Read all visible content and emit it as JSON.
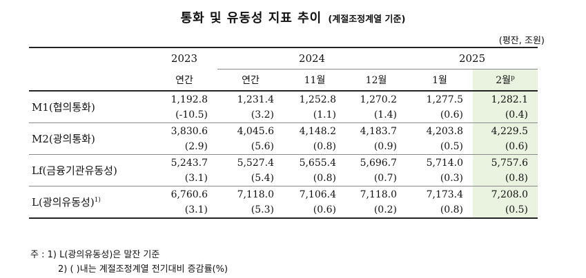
{
  "title": {
    "main": "통화 및 유동성 지표 추이",
    "sub": "(계절조정계열 기준)"
  },
  "unit": "(평잔, 조원)",
  "header": {
    "years": [
      "2023",
      "2024",
      "2025"
    ],
    "periods": [
      "연간",
      "연간",
      "11월",
      "12월",
      "1월",
      "2월"
    ],
    "last_period_sup": "p"
  },
  "rows": [
    {
      "label": "M1(협의통화)",
      "label_sup": "",
      "values": [
        "1,192.8",
        "1,231.4",
        "1,252.8",
        "1,270.2",
        "1,277.5",
        "1,282.1"
      ],
      "changes": [
        "(-10.5)",
        "(3.2)",
        "(1.1)",
        "(1.4)",
        "(0.6)",
        "(0.4)"
      ]
    },
    {
      "label": "M2(광의통화)",
      "label_sup": "",
      "values": [
        "3,830.6",
        "4,045.6",
        "4,148.2",
        "4,183.7",
        "4,203.8",
        "4,229.5"
      ],
      "changes": [
        "(2.9)",
        "(5.6)",
        "(0.8)",
        "(0.9)",
        "(0.5)",
        "(0.6)"
      ]
    },
    {
      "label": "Lf(금융기관유동성)",
      "label_sup": "",
      "values": [
        "5,243.7",
        "5,527.4",
        "5,655.4",
        "5,696.7",
        "5,714.0",
        "5,757.6"
      ],
      "changes": [
        "(3.1)",
        "(5.4)",
        "(0.8)",
        "(0.7)",
        "(0.3)",
        "(0.8)"
      ]
    },
    {
      "label": "L(광의유동성)",
      "label_sup": "1)",
      "values": [
        "6,760.6",
        "7,118.0",
        "7,106.4",
        "7,118.0",
        "7,173.4",
        "7,208.0"
      ],
      "changes": [
        "(3.1)",
        "(5.3)",
        "(0.6)",
        "(0.2)",
        "(0.8)",
        "(0.5)"
      ]
    }
  ],
  "notes": {
    "line1": "주 : 1) L(광의유동성)은 말잔 기준",
    "line2": "2) (   )내는 계절조정계열 전기대비 증감률(%)"
  },
  "colors": {
    "highlight": "#eaf2e0",
    "rule": "#222222"
  }
}
